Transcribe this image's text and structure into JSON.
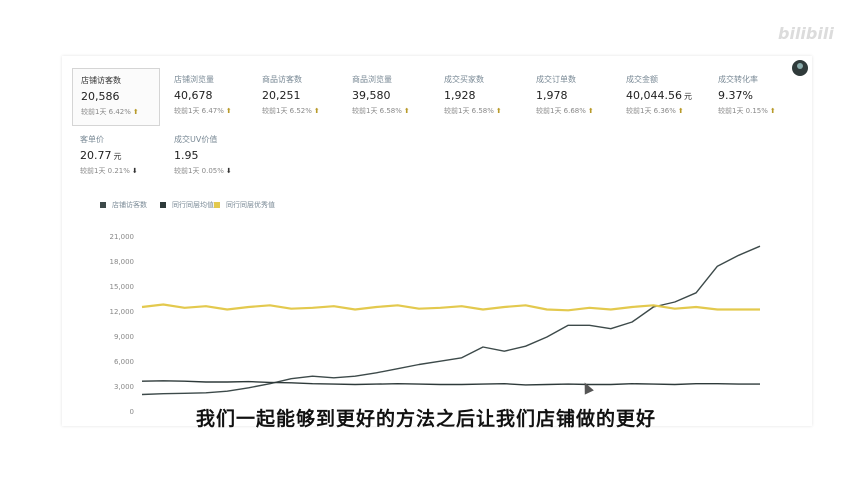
{
  "watermark": "bilibili",
  "kpis": [
    {
      "label": "店铺访客数",
      "value": "20,586",
      "unit": "",
      "compare": "较前1天 6.42%",
      "trend": "up",
      "selected": true
    },
    {
      "label": "店铺浏览量",
      "value": "40,678",
      "unit": "",
      "compare": "较前1天 6.47%",
      "trend": "up"
    },
    {
      "label": "商品访客数",
      "value": "20,251",
      "unit": "",
      "compare": "较前1天 6.52%",
      "trend": "up"
    },
    {
      "label": "商品浏览量",
      "value": "39,580",
      "unit": "",
      "compare": "较前1天 6.58%",
      "trend": "up"
    },
    {
      "label": "成交买家数",
      "value": "1,928",
      "unit": "",
      "compare": "较前1天 6.58%",
      "trend": "up"
    },
    {
      "label": "成交订单数",
      "value": "1,978",
      "unit": "",
      "compare": "较前1天 6.68%",
      "trend": "up"
    },
    {
      "label": "成交金额",
      "value": "40,044.56",
      "unit": "元",
      "compare": "较前1天 6.36%",
      "trend": "up"
    },
    {
      "label": "成交转化率",
      "value": "9.37%",
      "unit": "",
      "compare": "较前1天 0.15%",
      "trend": "up"
    },
    {
      "label": "客单价",
      "value": "20.77",
      "unit": "元",
      "compare": "较前1天 0.21%",
      "trend": "down"
    },
    {
      "label": "成交UV价值",
      "value": "1.95",
      "unit": "",
      "compare": "较前1天 0.05%",
      "trend": "down"
    }
  ],
  "chart_data": {
    "type": "line",
    "y_ticks": [
      "21,000",
      "18,000",
      "15,000",
      "12,000",
      "9,000",
      "6,000",
      "3,000",
      "0"
    ],
    "ylim": [
      0,
      21000
    ],
    "x": [
      1,
      2,
      3,
      4,
      5,
      6,
      7,
      8,
      9,
      10,
      11,
      12,
      13,
      14,
      15,
      16,
      17,
      18,
      19,
      20,
      21,
      22,
      23,
      24,
      25,
      26,
      27,
      28,
      29,
      30
    ],
    "series": [
      {
        "name": "店铺访客数",
        "color": "#3d4a4a",
        "values": [
          2100,
          2200,
          2250,
          2300,
          2500,
          2900,
          3400,
          4000,
          4300,
          4100,
          4300,
          4700,
          5200,
          5700,
          6100,
          6500,
          7800,
          7300,
          7900,
          9000,
          10400,
          10400,
          10000,
          10800,
          12600,
          13200,
          14300,
          17500,
          18800,
          19900
        ]
      },
      {
        "name": "同行同层均值",
        "color": "#2e3a3a",
        "values": [
          3700,
          3750,
          3700,
          3600,
          3600,
          3650,
          3550,
          3500,
          3400,
          3350,
          3300,
          3350,
          3400,
          3350,
          3300,
          3300,
          3350,
          3400,
          3250,
          3300,
          3350,
          3300,
          3300,
          3400,
          3350,
          3300,
          3400,
          3400,
          3350,
          3350
        ]
      },
      {
        "name": "同行同层优秀值",
        "color": "#e3c94e",
        "values": [
          12600,
          12900,
          12500,
          12700,
          12300,
          12600,
          12800,
          12400,
          12500,
          12700,
          12300,
          12600,
          12800,
          12400,
          12500,
          12700,
          12300,
          12600,
          12800,
          12300,
          12200,
          12500,
          12300,
          12600,
          12800,
          12400,
          12600,
          12300,
          12300,
          12300
        ]
      }
    ]
  },
  "subtitle": "我们一起能够到更好的方法之后让我们店铺做的更好"
}
